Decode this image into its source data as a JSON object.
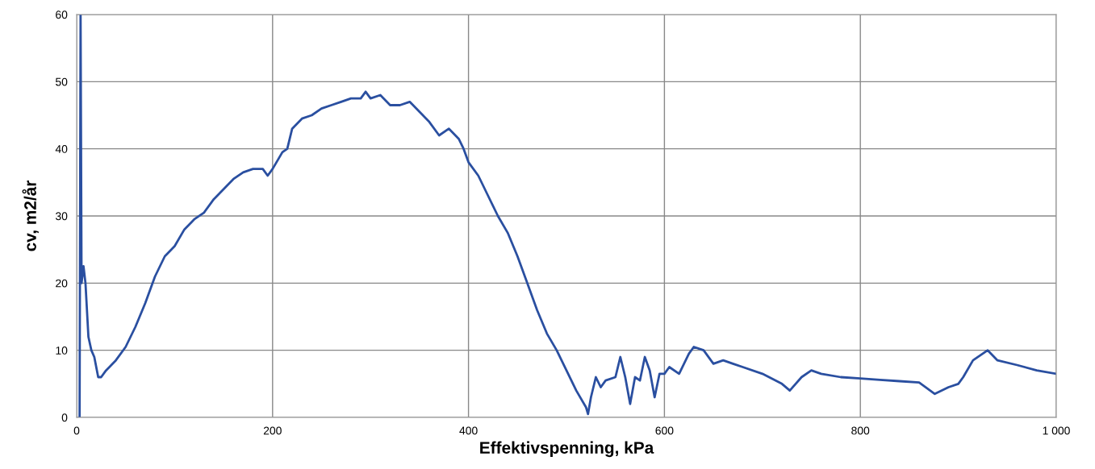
{
  "chart_data": {
    "type": "line",
    "xlabel": "Effektivspenning, kPa",
    "ylabel": "cv, m2/år",
    "x": [
      3,
      4,
      5,
      7,
      9,
      12,
      15,
      18,
      22,
      25,
      30,
      40,
      50,
      60,
      70,
      80,
      90,
      100,
      110,
      120,
      130,
      140,
      150,
      160,
      170,
      180,
      190,
      195,
      200,
      210,
      215,
      220,
      230,
      240,
      250,
      260,
      270,
      280,
      290,
      295,
      300,
      310,
      320,
      330,
      340,
      350,
      360,
      370,
      380,
      390,
      395,
      400,
      410,
      420,
      430,
      440,
      450,
      460,
      470,
      480,
      490,
      500,
      510,
      520,
      522,
      525,
      530,
      535,
      540,
      550,
      555,
      560,
      565,
      570,
      575,
      580,
      585,
      590,
      595,
      600,
      605,
      615,
      625,
      630,
      640,
      650,
      660,
      670,
      680,
      700,
      720,
      728,
      740,
      750,
      760,
      780,
      800,
      820,
      840,
      860,
      876,
      890,
      900,
      905,
      915,
      930,
      940,
      960,
      980,
      1000
    ],
    "series": [
      {
        "color": "#2a4fa0",
        "values": [
          0,
          60,
          20,
          22.5,
          20,
          12,
          10,
          9,
          6,
          6,
          7,
          8.5,
          10.5,
          13.5,
          17,
          21,
          24,
          25.5,
          28,
          29.5,
          30.5,
          32.5,
          34,
          35.5,
          36.5,
          37,
          37,
          36,
          37,
          39.5,
          40,
          43,
          44.5,
          45,
          46,
          46.5,
          47,
          47.5,
          47.5,
          48.5,
          47.5,
          48,
          46.5,
          46.5,
          47,
          45.5,
          44,
          42,
          43,
          41.5,
          40,
          38,
          36,
          33,
          30,
          27.5,
          24,
          20,
          16,
          12.5,
          10,
          7,
          4,
          1.5,
          0.5,
          3,
          6,
          4.5,
          5.5,
          6,
          9,
          6,
          2,
          6,
          5.5,
          9,
          7,
          3,
          6.5,
          6.5,
          7.5,
          6.5,
          9.5,
          10.5,
          10,
          8,
          8.5,
          8,
          7.5,
          6.5,
          5,
          4,
          6,
          7,
          6.5,
          6,
          5.8,
          5.6,
          5.4,
          5.2,
          3.5,
          4.5,
          5,
          6,
          8.5,
          10,
          8.5,
          7.8,
          7,
          6.5
        ]
      }
    ],
    "xlim": [
      0,
      1000
    ],
    "xticks": [
      0,
      200,
      400,
      600,
      800,
      {
        "value": 1000,
        "label": "1 000"
      }
    ],
    "ylim": [
      0,
      60
    ],
    "yticks": [
      0,
      10,
      20,
      30,
      40,
      50,
      60
    ],
    "grid": true,
    "legend": false,
    "marker": "none",
    "line_style": "solid"
  }
}
